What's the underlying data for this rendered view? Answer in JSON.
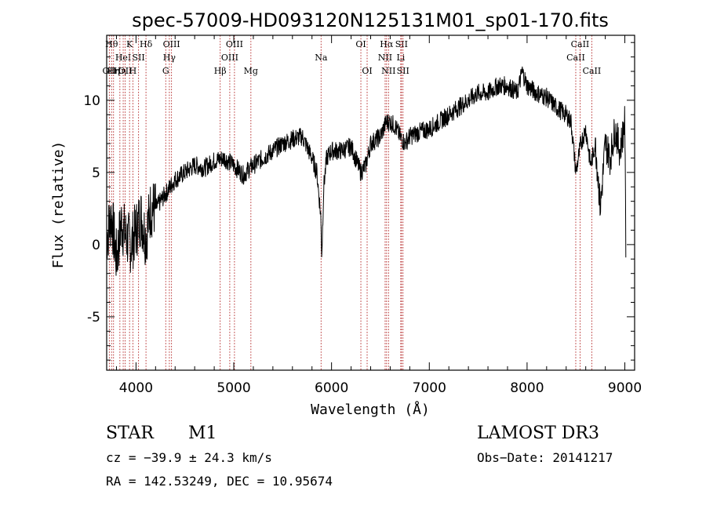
{
  "chart_data": {
    "type": "line",
    "title": "spec-57009-HD093120N125131M01_sp01-170.fits",
    "xlabel": "Wavelength (Å)",
    "ylabel": "Flux (relative)",
    "xlim": [
      3700,
      9100
    ],
    "ylim": [
      -8.7,
      14.5
    ],
    "xticks": [
      4000,
      5000,
      6000,
      7000,
      8000,
      9000
    ],
    "yticks": [
      -5,
      0,
      5,
      10
    ],
    "grid": false,
    "series": [
      {
        "name": "flux",
        "x": [
          3700,
          3750,
          3800,
          3850,
          3900,
          3950,
          4000,
          4050,
          4100,
          4150,
          4200,
          4300,
          4400,
          4500,
          4600,
          4700,
          4800,
          4900,
          5000,
          5100,
          5150,
          5200,
          5300,
          5400,
          5500,
          5600,
          5700,
          5800,
          5850,
          5890,
          5900,
          5920,
          5950,
          6000,
          6100,
          6200,
          6300,
          6350,
          6400,
          6500,
          6560,
          6600,
          6650,
          6700,
          6750,
          6800,
          6900,
          7000,
          7100,
          7200,
          7300,
          7400,
          7500,
          7600,
          7700,
          7800,
          7900,
          7950,
          8000,
          8100,
          8200,
          8300,
          8400,
          8450,
          8500,
          8550,
          8600,
          8650,
          8700,
          8750,
          8800,
          8850,
          8900,
          8950,
          9000,
          9010
        ],
        "y": [
          0.5,
          2,
          -1,
          1.5,
          0.5,
          0,
          1,
          2,
          0.5,
          2.5,
          2.5,
          3.5,
          4.5,
          5,
          5.5,
          5.3,
          5.8,
          6,
          5.5,
          4.8,
          5.2,
          5.5,
          6,
          6.5,
          7,
          7.3,
          7.5,
          6,
          5,
          2,
          -0.8,
          4,
          6,
          6.5,
          6.5,
          6.8,
          5,
          5.5,
          7,
          7.5,
          8.5,
          8.5,
          8.2,
          7.5,
          7,
          7.5,
          7.8,
          8,
          8.5,
          9,
          9.5,
          10,
          10.5,
          10.5,
          11,
          11,
          10.5,
          12,
          11,
          10.5,
          10.2,
          9.5,
          9,
          8.5,
          5,
          7,
          8,
          5.5,
          7,
          2.5,
          7,
          6,
          8,
          6.5,
          8.5,
          0
        ]
      }
    ],
    "lines": [
      {
        "x": 3727,
        "label": "OII",
        "row": 2
      },
      {
        "x": 3750,
        "label": "Hθ",
        "row": 0
      },
      {
        "x": 3770,
        "label": "Hη",
        "row": 2
      },
      {
        "x": 3835,
        "label": "Hη",
        "row": 2
      },
      {
        "x": 3869,
        "label": "HeI",
        "row": 1
      },
      {
        "x": 3889,
        "label": "OII",
        "row": 2
      },
      {
        "x": 3934,
        "label": "K",
        "row": 0
      },
      {
        "x": 3968,
        "label": "H",
        "row": 2
      },
      {
        "x": 4026,
        "label": "SII",
        "row": 1
      },
      {
        "x": 4102,
        "label": "Hδ",
        "row": 0
      },
      {
        "x": 4304,
        "label": "G",
        "row": 2
      },
      {
        "x": 4341,
        "label": "Hγ",
        "row": 1
      },
      {
        "x": 4363,
        "label": "OIII",
        "row": 0
      },
      {
        "x": 4861,
        "label": "Hβ",
        "row": 2
      },
      {
        "x": 4959,
        "label": "OIII",
        "row": 1
      },
      {
        "x": 5007,
        "label": "OIII",
        "row": 0
      },
      {
        "x": 5175,
        "label": "Mg",
        "row": 2
      },
      {
        "x": 5893,
        "label": "Na",
        "row": 1
      },
      {
        "x": 6300,
        "label": "OI",
        "row": 0
      },
      {
        "x": 6364,
        "label": "OI",
        "row": 2
      },
      {
        "x": 6548,
        "label": "NII",
        "row": 1
      },
      {
        "x": 6563,
        "label": "Hα",
        "row": 0
      },
      {
        "x": 6583,
        "label": "NII",
        "row": 2
      },
      {
        "x": 6708,
        "label": "Li",
        "row": 1
      },
      {
        "x": 6716,
        "label": "SII",
        "row": 0
      },
      {
        "x": 6731,
        "label": "SII",
        "row": 2
      },
      {
        "x": 8498,
        "label": "CaII",
        "row": 1
      },
      {
        "x": 8542,
        "label": "CaII",
        "row": 0
      },
      {
        "x": 8662,
        "label": "CaII",
        "row": 2
      }
    ]
  },
  "info": {
    "object_class": "STAR",
    "subclass": "M1",
    "survey": "LAMOST DR3",
    "cz": "cz = −39.9 ± 24.3 km/s",
    "obs_date": "Obs−Date: 20141217",
    "coords": "RA = 142.53249, DEC =  10.95674"
  }
}
